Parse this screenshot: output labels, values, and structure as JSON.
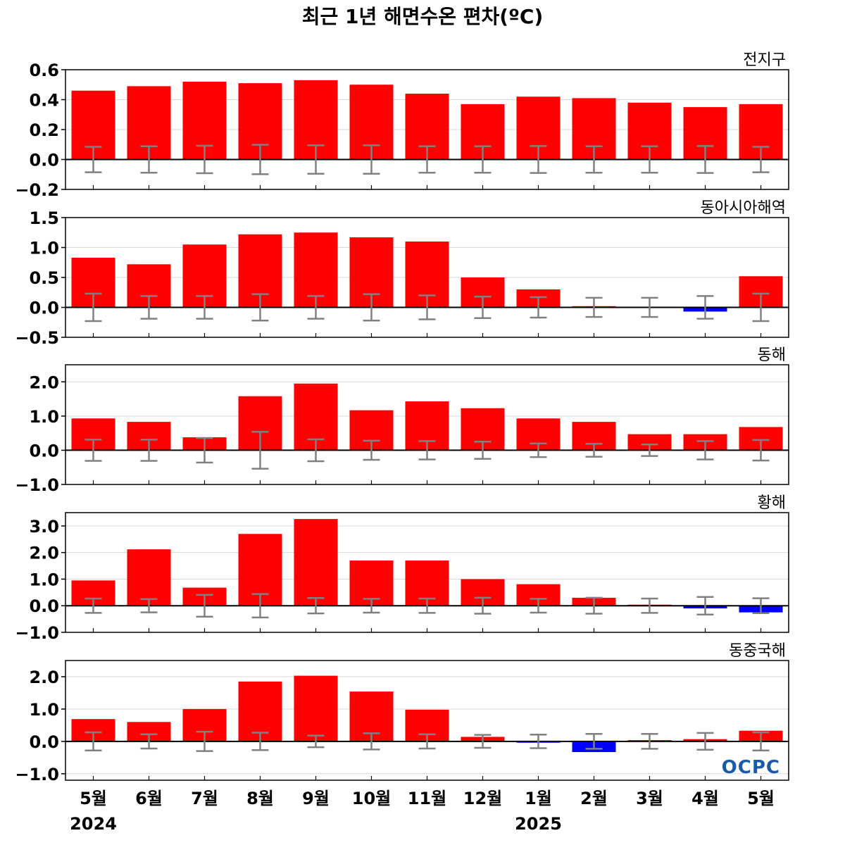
{
  "title": "최근 1년 해면수온 편차(ºC)",
  "logo_text": "OCPC",
  "colors": {
    "positive": "#ff0000",
    "negative": "#0000ff",
    "error_bar": "#808080",
    "grid": "#d9d9d9",
    "logo": "#1a5aa8"
  },
  "x_labels": [
    "5월",
    "6월",
    "7월",
    "8월",
    "9월",
    "10월",
    "11월",
    "12월",
    "1월",
    "2월",
    "3월",
    "4월",
    "5월"
  ],
  "year_labels": [
    {
      "label": "2024",
      "index": 0
    },
    {
      "label": "2025",
      "index": 8
    }
  ],
  "chart_data": [
    {
      "type": "bar",
      "name": "전지구",
      "ylim": [
        -0.2,
        0.6
      ],
      "yticks": [
        -0.2,
        0.0,
        0.2,
        0.4,
        0.6
      ],
      "ytick_labels": [
        "−0.2",
        "0.0",
        "0.2",
        "0.4",
        "0.6"
      ],
      "values": [
        0.46,
        0.49,
        0.52,
        0.51,
        0.53,
        0.5,
        0.44,
        0.37,
        0.42,
        0.41,
        0.38,
        0.35,
        0.37
      ],
      "error": [
        0.085,
        0.088,
        0.092,
        0.098,
        0.095,
        0.095,
        0.088,
        0.088,
        0.09,
        0.088,
        0.088,
        0.09,
        0.085
      ]
    },
    {
      "type": "bar",
      "name": "동아시아해역",
      "ylim": [
        -0.5,
        1.5
      ],
      "yticks": [
        -0.5,
        0.0,
        0.5,
        1.0,
        1.5
      ],
      "ytick_labels": [
        "−0.5",
        "0.0",
        "0.5",
        "1.0",
        "1.5"
      ],
      "values": [
        0.83,
        0.72,
        1.05,
        1.22,
        1.25,
        1.17,
        1.1,
        0.5,
        0.3,
        0.02,
        0.01,
        -0.07,
        0.52
      ],
      "error": [
        0.23,
        0.19,
        0.19,
        0.22,
        0.19,
        0.22,
        0.2,
        0.18,
        0.17,
        0.16,
        0.16,
        0.19,
        0.23
      ]
    },
    {
      "type": "bar",
      "name": "동해",
      "ylim": [
        -1.0,
        2.5
      ],
      "yticks": [
        -1.0,
        0.0,
        1.0,
        2.0
      ],
      "ytick_labels": [
        "−1.0",
        "0.0",
        "1.0",
        "2.0"
      ],
      "values": [
        0.93,
        0.83,
        0.38,
        1.58,
        1.95,
        1.17,
        1.43,
        1.23,
        0.93,
        0.83,
        0.47,
        0.47,
        0.68
      ],
      "error": [
        0.31,
        0.31,
        0.36,
        0.54,
        0.32,
        0.28,
        0.27,
        0.25,
        0.2,
        0.19,
        0.17,
        0.27,
        0.3
      ]
    },
    {
      "type": "bar",
      "name": "황해",
      "ylim": [
        -1.0,
        3.5
      ],
      "yticks": [
        -1.0,
        0.0,
        1.0,
        2.0,
        3.0
      ],
      "ytick_labels": [
        "−1.0",
        "0.0",
        "1.0",
        "2.0",
        "3.0"
      ],
      "values": [
        0.95,
        2.12,
        0.68,
        2.7,
        3.26,
        1.7,
        1.7,
        1.0,
        0.81,
        0.3,
        0.04,
        -0.1,
        -0.25
      ],
      "error": [
        0.27,
        0.25,
        0.41,
        0.44,
        0.29,
        0.26,
        0.27,
        0.3,
        0.26,
        0.3,
        0.27,
        0.33,
        0.28
      ]
    },
    {
      "type": "bar",
      "name": "동중국해",
      "ylim": [
        -1.2,
        2.5
      ],
      "yticks": [
        -1.0,
        0.0,
        1.0,
        2.0
      ],
      "ytick_labels": [
        "−1.0",
        "0.0",
        "1.0",
        "2.0"
      ],
      "values": [
        0.69,
        0.6,
        1.0,
        1.85,
        2.03,
        1.54,
        0.98,
        0.14,
        -0.04,
        -0.33,
        0.04,
        0.07,
        0.33
      ],
      "error": [
        0.28,
        0.22,
        0.3,
        0.27,
        0.18,
        0.25,
        0.22,
        0.2,
        0.21,
        0.23,
        0.23,
        0.26,
        0.28
      ]
    }
  ]
}
